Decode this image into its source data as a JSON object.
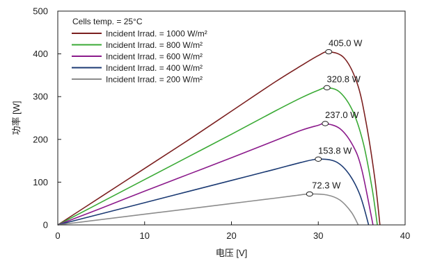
{
  "chart_data": {
    "type": "line",
    "xlabel": "电压 [V]",
    "ylabel": "功率 [W]",
    "xlim": [
      0,
      40
    ],
    "ylim": [
      0,
      500
    ],
    "xticks": [
      0,
      10,
      20,
      30,
      40
    ],
    "yticks": [
      0,
      100,
      200,
      300,
      400,
      500
    ],
    "grid": false,
    "legend_placement": "top-left",
    "legend_title": "Cells temp. = 25°C",
    "series": [
      {
        "name": "Incident Irrad. = 1000 W/m²",
        "color": "#7b1f1f",
        "x": [
          0,
          5,
          10,
          15,
          20,
          25,
          28,
          30,
          31.2,
          33,
          34.5,
          35.5,
          36.5,
          37.1
        ],
        "y": [
          0,
          66,
          132,
          198,
          266,
          334,
          372,
          396,
          405,
          390,
          330,
          240,
          110,
          0
        ],
        "peak": {
          "x": 31.2,
          "y": 405.0,
          "label": "405.0 W"
        }
      },
      {
        "name": "Incident Irrad. = 800 W/m²",
        "color": "#3aaa35",
        "x": [
          0,
          5,
          10,
          15,
          20,
          25,
          28,
          30,
          31.0,
          32.5,
          34,
          35.2,
          36.2,
          36.8
        ],
        "y": [
          0,
          53,
          106,
          159,
          212,
          266,
          297,
          315,
          320.8,
          310,
          265,
          190,
          85,
          0
        ],
        "peak": {
          "x": 31.0,
          "y": 320.8,
          "label": "320.8 W"
        }
      },
      {
        "name": "Incident Irrad. = 600 W/m²",
        "color": "#8b1a8b",
        "x": [
          0,
          5,
          10,
          15,
          20,
          25,
          28,
          30,
          30.8,
          32.5,
          34,
          35,
          36.3
        ],
        "y": [
          0,
          39,
          79,
          118,
          157,
          197,
          221,
          233,
          237.0,
          225,
          185,
          130,
          0
        ],
        "peak": {
          "x": 30.8,
          "y": 237.0,
          "label": "237.0 W"
        }
      },
      {
        "name": "Incident Irrad. = 400 W/m²",
        "color": "#1b3a73",
        "x": [
          0,
          5,
          10,
          15,
          20,
          25,
          28,
          30.0,
          32,
          33.5,
          34.8,
          35.8
        ],
        "y": [
          0,
          26,
          52,
          78,
          104,
          130,
          146,
          153.8,
          148,
          120,
          70,
          0
        ],
        "peak": {
          "x": 30.0,
          "y": 153.8,
          "label": "153.8 W"
        }
      },
      {
        "name": "Incident Irrad. = 200 W/m²",
        "color": "#8c8c8c",
        "x": [
          0,
          5,
          10,
          15,
          20,
          25,
          27.5,
          29.0,
          31,
          32.5,
          33.8,
          34.6
        ],
        "y": [
          0,
          12.5,
          25,
          37.5,
          50,
          62.5,
          69,
          72.3,
          70,
          58,
          30,
          0
        ],
        "peak": {
          "x": 29.0,
          "y": 72.3,
          "label": "72.3 W"
        }
      }
    ]
  }
}
